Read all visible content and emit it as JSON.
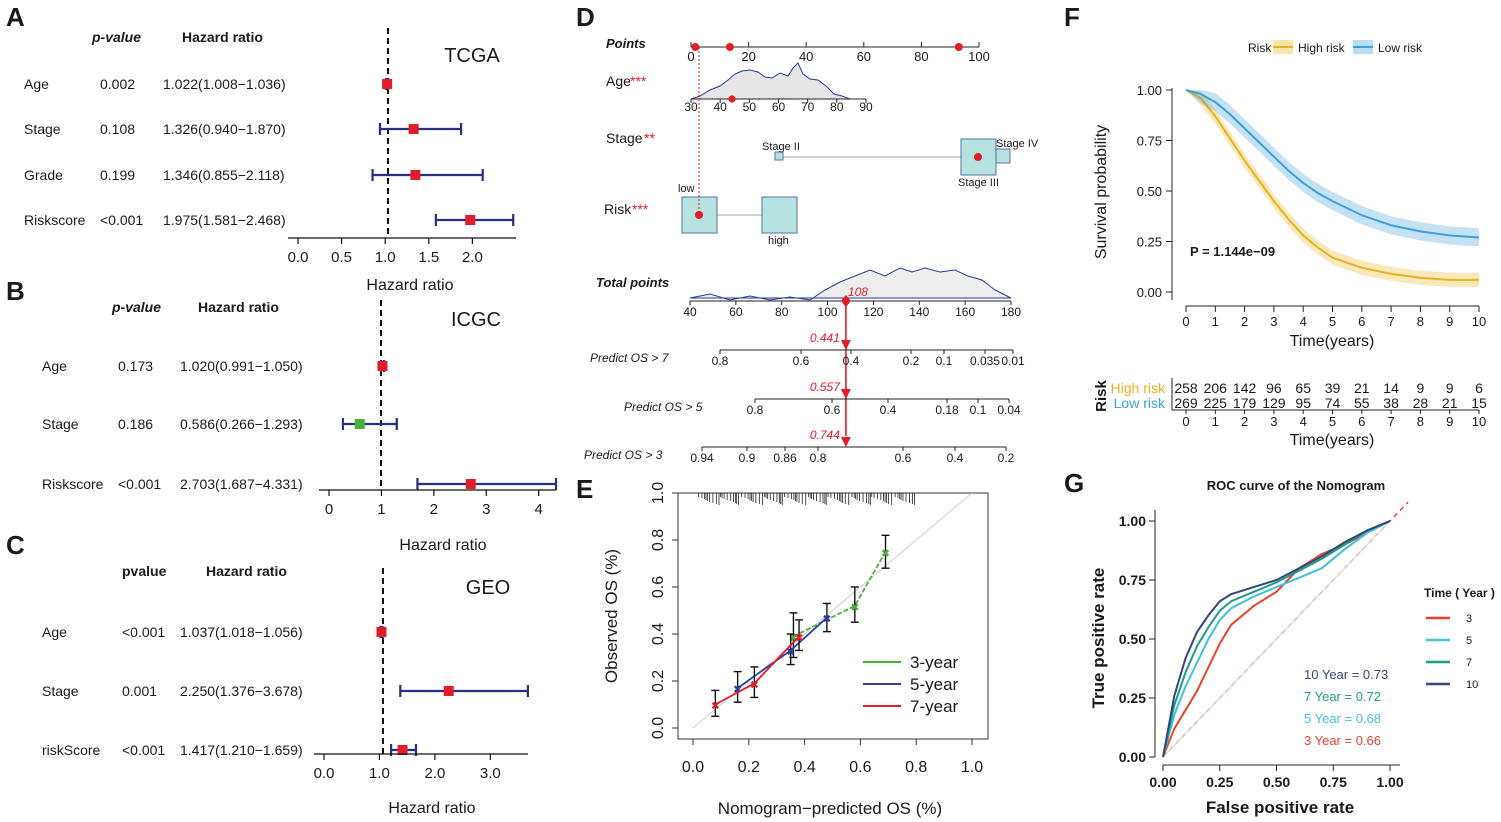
{
  "panel_letters": [
    "A",
    "B",
    "C",
    "D",
    "E",
    "F",
    "G"
  ],
  "chart_data": [
    {
      "id": "A",
      "type": "forest",
      "title": "TCGA",
      "col_p": "p-value",
      "col_hr": "Hazard ratio",
      "xlabel": "Hazard ratio",
      "ticks": [
        "0.0",
        "0.5",
        "1.0",
        "1.5",
        "2.0"
      ],
      "xlim": [
        0,
        2.5
      ],
      "ref": 1,
      "rows": [
        {
          "var": "Age",
          "p": "0.002",
          "hr_text": "1.022(1.008−1.036)",
          "hr": 1.022,
          "lo": 1.008,
          "hi": 1.036,
          "color": "#e11d2a"
        },
        {
          "var": "Stage",
          "p": "0.108",
          "hr_text": "1.326(0.940−1.870)",
          "hr": 1.326,
          "lo": 0.94,
          "hi": 1.87,
          "color": "#e11d2a"
        },
        {
          "var": "Grade",
          "p": "0.199",
          "hr_text": "1.346(0.855−2.118)",
          "hr": 1.346,
          "lo": 0.855,
          "hi": 2.118,
          "color": "#e11d2a"
        },
        {
          "var": "Riskscore",
          "p": "<0.001",
          "hr_text": "1.975(1.581−2.468)",
          "hr": 1.975,
          "lo": 1.581,
          "hi": 2.468,
          "color": "#e11d2a"
        }
      ]
    },
    {
      "id": "B",
      "type": "forest",
      "title": "ICGC",
      "col_p": "p-value",
      "col_hr": "Hazard ratio",
      "xlabel": "Hazard ratio",
      "ticks": [
        "0",
        "1",
        "2",
        "3",
        "4"
      ],
      "xlim": [
        0,
        4.33
      ],
      "ref": 1,
      "rows": [
        {
          "var": "Age",
          "p": "0.173",
          "hr_text": "1.020(0.991−1.050)",
          "hr": 1.02,
          "lo": 0.991,
          "hi": 1.05,
          "color": "#e11d2a"
        },
        {
          "var": "Stage",
          "p": "0.186",
          "hr_text": "0.586(0.266−1.293)",
          "hr": 0.586,
          "lo": 0.266,
          "hi": 1.293,
          "color": "#4caf3a"
        },
        {
          "var": "Riskscore",
          "p": "<0.001",
          "hr_text": "2.703(1.687−4.331)",
          "hr": 2.703,
          "lo": 1.687,
          "hi": 4.331,
          "color": "#e11d2a"
        }
      ]
    },
    {
      "id": "C",
      "type": "forest",
      "title": "GEO",
      "col_p": "pvalue",
      "col_hr": "Hazard ratio",
      "xlabel": "Hazard ratio",
      "ticks": [
        "0.0",
        "1.0",
        "2.0",
        "3.0"
      ],
      "xlim": [
        0,
        3.68
      ],
      "ref": 1,
      "rows": [
        {
          "var": "Age",
          "p": "<0.001",
          "hr_text": "1.037(1.018−1.056)",
          "hr": 1.037,
          "lo": 1.018,
          "hi": 1.056,
          "color": "#e11d2a"
        },
        {
          "var": "Stage",
          "p": "0.001",
          "hr_text": "2.250(1.376−3.678)",
          "hr": 2.25,
          "lo": 1.376,
          "hi": 3.678,
          "color": "#e11d2a"
        },
        {
          "var": "riskScore",
          "p": "<0.001",
          "hr_text": "1.417(1.210−1.659)",
          "hr": 1.417,
          "lo": 1.21,
          "hi": 1.659,
          "color": "#e11d2a"
        }
      ]
    },
    {
      "id": "D",
      "type": "nomogram",
      "points_label": "Points",
      "points_ticks": [
        "0",
        "20",
        "40",
        "60",
        "80",
        "100"
      ],
      "age_label": "Age",
      "age_stars": "***",
      "age_ticks": [
        "30",
        "40",
        "50",
        "60",
        "70",
        "80",
        "90"
      ],
      "stage_label": "Stage",
      "stage_stars": "**",
      "stage_levels": [
        "Stage II",
        "Stage III",
        "Stage IV"
      ],
      "risk_label": "Risk",
      "risk_stars": "***",
      "risk_levels": [
        "low",
        "high"
      ],
      "total_label": "Total points",
      "total_ticks": [
        "40",
        "60",
        "80",
        "100",
        "120",
        "140",
        "160",
        "180"
      ],
      "total_value": 108,
      "total_value_text": "108",
      "predictions": [
        {
          "label": "Predict OS > 7",
          "value": "0.441",
          "ticks": [
            "0.8",
            "0.6",
            "0.4",
            "0.2",
            "0.1",
            "0.035",
            "0.01"
          ]
        },
        {
          "label": "Predict OS > 5",
          "value": "0.557",
          "ticks": [
            "0.8",
            "0.6",
            "0.4",
            "0.18",
            "0.1",
            "0.04"
          ]
        },
        {
          "label": "Predict OS > 3",
          "value": "0.744",
          "ticks": [
            "0.94",
            "0.9",
            "0.86",
            "0.8",
            "0.6",
            "0.4",
            "0.2"
          ]
        }
      ]
    },
    {
      "id": "E",
      "type": "calibration",
      "xlabel": "Nomogram−predicted OS (%)",
      "ylabel": "Observed OS (%)",
      "xticks": [
        "0.0",
        "0.2",
        "0.4",
        "0.6",
        "0.8",
        "1.0"
      ],
      "yticks": [
        "0.0",
        "0.2",
        "0.4",
        "0.6",
        "0.8",
        "1.0"
      ],
      "xlim": [
        0,
        1
      ],
      "ylim": [
        0,
        1
      ],
      "series": [
        {
          "name": "3-year",
          "color": "#4caf3a",
          "x": [
            0.36,
            0.58,
            0.69
          ],
          "y": [
            0.39,
            0.52,
            0.75
          ],
          "lo": [
            0.3,
            0.45,
            0.68
          ],
          "hi": [
            0.49,
            0.6,
            0.82
          ]
        },
        {
          "name": "5-year",
          "color": "#2b3fa8",
          "x": [
            0.16,
            0.35,
            0.48
          ],
          "y": [
            0.17,
            0.33,
            0.47
          ],
          "lo": [
            0.11,
            0.27,
            0.41
          ],
          "hi": [
            0.24,
            0.4,
            0.53
          ]
        },
        {
          "name": "7-year",
          "color": "#e0202a",
          "x": [
            0.08,
            0.22,
            0.38
          ],
          "y": [
            0.1,
            0.19,
            0.39
          ],
          "lo": [
            0.05,
            0.13,
            0.33
          ],
          "hi": [
            0.16,
            0.26,
            0.46
          ]
        }
      ]
    },
    {
      "id": "F",
      "type": "km",
      "legend_title": "Risk",
      "xlabel": "Time(years)",
      "ylabel": "Survival probability",
      "pvalue": "P = 1.144e−09",
      "xticks": [
        "0",
        "1",
        "2",
        "3",
        "4",
        "5",
        "6",
        "7",
        "8",
        "9",
        "10"
      ],
      "yticks": [
        "0.00",
        "0.25",
        "0.50",
        "0.75",
        "1.00"
      ],
      "xlim": [
        0,
        10
      ],
      "ylim": [
        0,
        1
      ],
      "series": [
        {
          "name": "High risk",
          "color": "#e7b21f",
          "x": [
            0,
            0.5,
            1,
            1.5,
            2,
            2.5,
            3,
            3.5,
            4,
            4.5,
            5,
            6,
            7,
            8,
            9,
            10
          ],
          "y": [
            1.0,
            0.96,
            0.87,
            0.76,
            0.65,
            0.55,
            0.45,
            0.36,
            0.28,
            0.22,
            0.17,
            0.12,
            0.09,
            0.07,
            0.06,
            0.06
          ]
        },
        {
          "name": "Low risk",
          "color": "#3b9fdc",
          "x": [
            0,
            0.5,
            1,
            1.5,
            2,
            2.5,
            3,
            3.5,
            4,
            4.5,
            5,
            6,
            7,
            8,
            9,
            10
          ],
          "y": [
            1.0,
            0.98,
            0.94,
            0.88,
            0.81,
            0.74,
            0.67,
            0.6,
            0.54,
            0.49,
            0.45,
            0.38,
            0.33,
            0.3,
            0.28,
            0.27
          ]
        }
      ],
      "risk_table_title": "Risk",
      "risk_table_xlabel": "Time(years)",
      "risk_table": [
        {
          "name": "High risk",
          "color": "#e7b21f",
          "counts": [
            "258",
            "206",
            "142",
            "96",
            "65",
            "39",
            "21",
            "14",
            "9",
            "9",
            "6"
          ]
        },
        {
          "name": "Low risk",
          "color": "#3b9fdc",
          "counts": [
            "269",
            "225",
            "179",
            "129",
            "95",
            "74",
            "55",
            "38",
            "28",
            "21",
            "15"
          ]
        }
      ]
    },
    {
      "id": "G",
      "type": "roc",
      "title": "ROC curve of the Nomogram",
      "xlabel": "False positive rate",
      "ylabel": "True positive rate",
      "xticks": [
        "0.00",
        "0.25",
        "0.50",
        "0.75",
        "1.00"
      ],
      "yticks": [
        "0.00",
        "0.25",
        "0.50",
        "0.75",
        "1.00"
      ],
      "legend_title": "Time ( Year )",
      "series": [
        {
          "name": "3",
          "color": "#e8432e",
          "auc_text": "3 Year = 0.66",
          "x": [
            0,
            0.05,
            0.1,
            0.15,
            0.2,
            0.25,
            0.3,
            0.4,
            0.5,
            0.6,
            0.7,
            0.8,
            0.9,
            1.0
          ],
          "y": [
            0,
            0.12,
            0.2,
            0.28,
            0.38,
            0.48,
            0.56,
            0.64,
            0.7,
            0.8,
            0.86,
            0.9,
            0.95,
            1.0
          ]
        },
        {
          "name": "5",
          "color": "#3fc1dc",
          "auc_text": "5 Year = 0.68",
          "x": [
            0,
            0.05,
            0.1,
            0.15,
            0.2,
            0.25,
            0.3,
            0.4,
            0.5,
            0.6,
            0.7,
            0.8,
            0.9,
            1.0
          ],
          "y": [
            0,
            0.18,
            0.3,
            0.4,
            0.5,
            0.58,
            0.63,
            0.68,
            0.72,
            0.76,
            0.8,
            0.88,
            0.95,
            1.0
          ]
        },
        {
          "name": "7",
          "color": "#1f9d84",
          "auc_text": "7 Year = 0.72",
          "x": [
            0,
            0.05,
            0.1,
            0.15,
            0.2,
            0.25,
            0.3,
            0.4,
            0.5,
            0.6,
            0.7,
            0.8,
            0.9,
            1.0
          ],
          "y": [
            0,
            0.22,
            0.36,
            0.47,
            0.55,
            0.62,
            0.66,
            0.7,
            0.74,
            0.79,
            0.84,
            0.9,
            0.96,
            1.0
          ]
        },
        {
          "name": "10",
          "color": "#33477a",
          "auc_text": "10 Year = 0.73",
          "x": [
            0,
            0.05,
            0.1,
            0.15,
            0.2,
            0.25,
            0.3,
            0.4,
            0.5,
            0.6,
            0.7,
            0.8,
            0.9,
            1.0
          ],
          "y": [
            0,
            0.26,
            0.42,
            0.53,
            0.6,
            0.66,
            0.69,
            0.72,
            0.75,
            0.8,
            0.85,
            0.91,
            0.96,
            1.0
          ]
        }
      ]
    }
  ]
}
